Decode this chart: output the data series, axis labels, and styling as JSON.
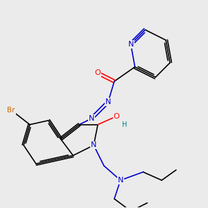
{
  "background_color": "#ebebeb",
  "atom_colors": {
    "C": "#000000",
    "N": "#0000cc",
    "O": "#ff0000",
    "Br": "#cc6600",
    "H": "#008080"
  },
  "bond_color": "#000000",
  "bond_width": 1.2,
  "figsize": [
    3.0,
    3.0
  ],
  "dpi": 100,
  "xlim": [
    0,
    10
  ],
  "ylim": [
    0,
    10
  ]
}
